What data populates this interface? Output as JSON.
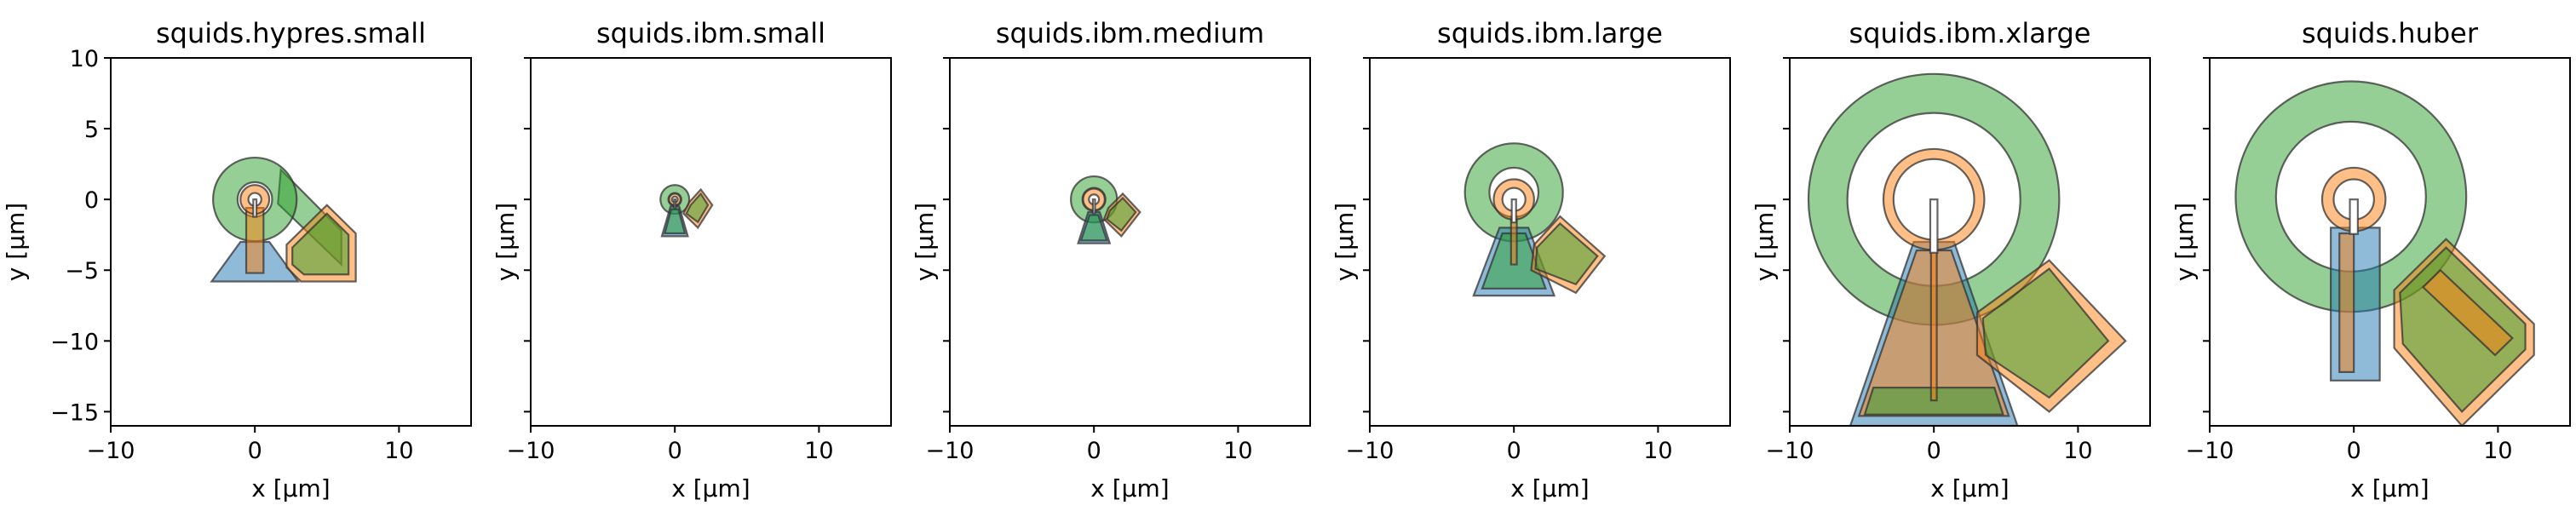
{
  "chart_data": [
    {
      "type": "layout",
      "title": "squids.hypres.small",
      "xlabel": "x [µm]",
      "ylabel": "y [µm]",
      "xlim": [
        -10,
        15
      ],
      "ylim": [
        -16,
        10
      ],
      "xticks": [
        -10,
        0,
        10
      ],
      "yticks": [
        10,
        5,
        0,
        -5,
        -10,
        -15
      ],
      "show_ytick_labels": true,
      "colors": {
        "blue": "#1f77b4",
        "orange": "#ff7f0e",
        "green": "#2ca02c"
      },
      "polygons": [
        {
          "name": "pl shield",
          "color": "blue",
          "points": [
            [
              -3,
              -5.8
            ],
            [
              -1,
              -3
            ],
            [
              1,
              -3
            ],
            [
              3,
              -5.8
            ]
          ]
        },
        {
          "name": "fc",
          "color": "orange",
          "points": [
            [
              2.2,
              -3.2
            ],
            [
              5,
              -0.4
            ],
            [
              7,
              -2.4
            ],
            [
              7,
              -5.8
            ],
            [
              3.2,
              -5.8
            ],
            [
              2.2,
              -4.8
            ]
          ]
        },
        {
          "name": "fc center",
          "color": "green",
          "points": [
            [
              2.6,
              -3.4
            ],
            [
              5,
              -1
            ],
            [
              6.5,
              -2.5
            ],
            [
              6.5,
              -5.3
            ],
            [
              3.4,
              -5.3
            ],
            [
              2.6,
              -4.6
            ]
          ]
        },
        {
          "name": "pl",
          "color": "orange",
          "points": [
            [
              -0.6,
              -5.2
            ],
            [
              -0.6,
              -0.6
            ],
            [
              0.6,
              -0.6
            ],
            [
              0.6,
              -5.2
            ]
          ]
        }
      ],
      "rings": [
        {
          "name": "washer",
          "color": "green",
          "cx": 0,
          "cy": 0,
          "r_outer": 2.9,
          "r_inner": 1.2,
          "arm": [
            [
              1.8,
              2.1
            ],
            [
              6,
              -2.2
            ],
            [
              6,
              -4.6
            ],
            [
              1.6,
              -0.3
            ]
          ]
        },
        {
          "name": "loop",
          "color": "orange",
          "cx": 0,
          "cy": 0,
          "r_outer": 1.0,
          "r_inner": 0.45,
          "slot": 0.22
        }
      ]
    },
    {
      "type": "layout",
      "title": "squids.ibm.small",
      "xlabel": "x [µm]",
      "ylabel": "y [µm]",
      "xlim": [
        -10,
        15
      ],
      "ylim": [
        -16,
        10
      ],
      "xticks": [
        -10,
        0,
        10
      ],
      "yticks": [
        10,
        5,
        0,
        -5,
        -10,
        -15
      ],
      "show_ytick_labels": false,
      "colors": {
        "blue": "#1f77b4",
        "orange": "#ff7f0e",
        "green": "#2ca02c"
      },
      "polygons": [
        {
          "name": "pl shield",
          "color": "blue",
          "points": [
            [
              -0.9,
              -2.6
            ],
            [
              -0.3,
              -0.5
            ],
            [
              0.3,
              -0.5
            ],
            [
              0.9,
              -2.6
            ]
          ]
        },
        {
          "name": "pl inner",
          "color": "green",
          "points": [
            [
              -0.7,
              -2.4
            ],
            [
              -0.25,
              -0.7
            ],
            [
              0.25,
              -0.7
            ],
            [
              0.7,
              -2.4
            ]
          ]
        },
        {
          "name": "fc",
          "color": "orange",
          "points": [
            [
              1.0,
              -0.2
            ],
            [
              1.8,
              0.7
            ],
            [
              2.6,
              -0.4
            ],
            [
              1.6,
              -2.0
            ],
            [
              0.6,
              -1.0
            ]
          ]
        },
        {
          "name": "fc center",
          "color": "green",
          "points": [
            [
              1.1,
              -0.4
            ],
            [
              1.8,
              0.4
            ],
            [
              2.3,
              -0.4
            ],
            [
              1.6,
              -1.6
            ],
            [
              0.8,
              -1.0
            ]
          ]
        }
      ],
      "rings": [
        {
          "name": "washer",
          "color": "green",
          "cx": 0,
          "cy": 0,
          "r_outer": 1.0,
          "r_inner": 0.45
        },
        {
          "name": "loop",
          "color": "orange",
          "cx": 0,
          "cy": 0,
          "r_outer": 0.4,
          "r_inner": 0.2,
          "slot": 0.1
        }
      ]
    },
    {
      "type": "layout",
      "title": "squids.ibm.medium",
      "xlabel": "x [µm]",
      "ylabel": "y [µm]",
      "xlim": [
        -10,
        15
      ],
      "ylim": [
        -16,
        10
      ],
      "xticks": [
        -10,
        0,
        10
      ],
      "yticks": [
        10,
        5,
        0,
        -5,
        -10,
        -15
      ],
      "show_ytick_labels": false,
      "colors": {
        "blue": "#1f77b4",
        "orange": "#ff7f0e",
        "green": "#2ca02c"
      },
      "polygons": [
        {
          "name": "pl shield",
          "color": "blue",
          "points": [
            [
              -1.1,
              -3.1
            ],
            [
              -0.4,
              -0.9
            ],
            [
              0.4,
              -0.9
            ],
            [
              1.1,
              -3.1
            ]
          ]
        },
        {
          "name": "pl inner",
          "color": "green",
          "points": [
            [
              -0.9,
              -2.9
            ],
            [
              -0.3,
              -1.1
            ],
            [
              0.3,
              -1.1
            ],
            [
              0.9,
              -2.9
            ]
          ]
        },
        {
          "name": "fc",
          "color": "orange",
          "points": [
            [
              1.0,
              -0.6
            ],
            [
              2.0,
              0.4
            ],
            [
              3.2,
              -0.9
            ],
            [
              1.9,
              -2.6
            ],
            [
              0.7,
              -1.4
            ]
          ]
        },
        {
          "name": "fc center",
          "color": "green",
          "points": [
            [
              1.1,
              -0.8
            ],
            [
              2.0,
              0.1
            ],
            [
              2.9,
              -0.9
            ],
            [
              1.9,
              -2.2
            ],
            [
              0.9,
              -1.4
            ]
          ]
        }
      ],
      "rings": [
        {
          "name": "washer",
          "color": "green",
          "cx": 0,
          "cy": 0,
          "r_outer": 1.6,
          "r_inner": 0.8
        },
        {
          "name": "loop",
          "color": "orange",
          "cx": 0,
          "cy": 0,
          "r_outer": 0.75,
          "r_inner": 0.35,
          "slot": 0.15
        }
      ]
    },
    {
      "type": "layout",
      "title": "squids.ibm.large",
      "xlabel": "x [µm]",
      "ylabel": "y [µm]",
      "xlim": [
        -10,
        15
      ],
      "ylim": [
        -16,
        10
      ],
      "xticks": [
        -10,
        0,
        10
      ],
      "yticks": [
        10,
        5,
        0,
        -5,
        -10,
        -15
      ],
      "show_ytick_labels": false,
      "colors": {
        "blue": "#1f77b4",
        "orange": "#ff7f0e",
        "green": "#2ca02c"
      },
      "polygons": [
        {
          "name": "pl shield",
          "color": "blue",
          "points": [
            [
              -2.8,
              -6.8
            ],
            [
              -1.0,
              -2.0
            ],
            [
              1.0,
              -2.0
            ],
            [
              2.8,
              -6.8
            ]
          ]
        },
        {
          "name": "pl inner",
          "color": "green",
          "points": [
            [
              -2.2,
              -6.3
            ],
            [
              -0.8,
              -2.4
            ],
            [
              0.8,
              -2.4
            ],
            [
              2.2,
              -6.3
            ]
          ]
        },
        {
          "name": "fc",
          "color": "orange",
          "points": [
            [
              1.4,
              -3.2
            ],
            [
              3.2,
              -1.2
            ],
            [
              6.3,
              -4.0
            ],
            [
              4.3,
              -6.6
            ],
            [
              1.2,
              -5.0
            ]
          ]
        },
        {
          "name": "fc center",
          "color": "green",
          "points": [
            [
              1.6,
              -3.4
            ],
            [
              3.2,
              -1.7
            ],
            [
              5.8,
              -4.0
            ],
            [
              4.3,
              -6.0
            ],
            [
              1.5,
              -4.9
            ]
          ]
        },
        {
          "name": "pl",
          "color": "orange",
          "points": [
            [
              -0.2,
              -4.6
            ],
            [
              -0.2,
              -1.2
            ],
            [
              0.2,
              -1.2
            ],
            [
              0.2,
              -4.6
            ]
          ]
        }
      ],
      "rings": [
        {
          "name": "washer",
          "color": "green",
          "cx": 0,
          "cy": 0.5,
          "r_outer": 3.4,
          "r_inner": 1.7
        },
        {
          "name": "loop",
          "color": "orange",
          "cx": 0,
          "cy": 0,
          "r_outer": 1.4,
          "r_inner": 0.8,
          "slot": 0.3
        }
      ]
    },
    {
      "type": "layout",
      "title": "squids.ibm.xlarge",
      "xlabel": "x [µm]",
      "ylabel": "y [µm]",
      "xlim": [
        -10,
        15
      ],
      "ylim": [
        -16,
        10
      ],
      "xticks": [
        -10,
        0,
        10
      ],
      "yticks": [
        10,
        5,
        0,
        -5,
        -10,
        -15
      ],
      "show_ytick_labels": false,
      "colors": {
        "blue": "#1f77b4",
        "orange": "#ff7f0e",
        "green": "#2ca02c"
      },
      "polygons": [
        {
          "name": "pl shield",
          "color": "blue",
          "points": [
            [
              -5.8,
              -16
            ],
            [
              -1.4,
              -3.0
            ],
            [
              1.4,
              -3.0
            ],
            [
              5.8,
              -16
            ]
          ]
        },
        {
          "name": "pl inner",
          "color": "orange",
          "points": [
            [
              -5.2,
              -15.3
            ],
            [
              -1.2,
              -3.6
            ],
            [
              1.2,
              -3.6
            ],
            [
              5.2,
              -15.3
            ]
          ]
        },
        {
          "name": "pl bottom",
          "color": "green",
          "points": [
            [
              -4.8,
              -15.2
            ],
            [
              -4.2,
              -13.3
            ],
            [
              4.2,
              -13.3
            ],
            [
              4.8,
              -15.2
            ]
          ]
        },
        {
          "name": "fc",
          "color": "orange",
          "points": [
            [
              3.0,
              -8.0
            ],
            [
              8.0,
              -4.3
            ],
            [
              13.3,
              -10.0
            ],
            [
              8.0,
              -15.0
            ],
            [
              3.0,
              -11.0
            ]
          ]
        },
        {
          "name": "fc center",
          "color": "green",
          "points": [
            [
              3.4,
              -8.4
            ],
            [
              8.0,
              -4.9
            ],
            [
              12.1,
              -10.0
            ],
            [
              8.0,
              -14.0
            ],
            [
              3.6,
              -11.0
            ]
          ]
        },
        {
          "name": "pl",
          "color": "orange",
          "points": [
            [
              -0.2,
              -14.2
            ],
            [
              -0.2,
              -3.0
            ],
            [
              0.2,
              -3.0
            ],
            [
              0.2,
              -14.2
            ]
          ]
        }
      ],
      "rings": [
        {
          "name": "washer",
          "color": "green",
          "cx": 0,
          "cy": 0,
          "r_outer": 8.7,
          "r_inner": 6.0,
          "gap": true
        },
        {
          "name": "loop",
          "color": "orange",
          "cx": 0,
          "cy": 0,
          "r_outer": 3.5,
          "r_inner": 2.8,
          "slot": 0.5
        }
      ]
    },
    {
      "type": "layout",
      "title": "squids.huber",
      "xlabel": "x [µm]",
      "ylabel": "y [µm]",
      "xlim": [
        -10,
        15
      ],
      "ylim": [
        -16,
        10
      ],
      "xticks": [
        -10,
        0,
        10
      ],
      "yticks": [
        10,
        5,
        0,
        -5,
        -10,
        -15
      ],
      "show_ytick_labels": false,
      "colors": {
        "blue": "#1f77b4",
        "orange": "#ff7f0e",
        "green": "#2ca02c"
      },
      "polygons": [
        {
          "name": "pl shield",
          "color": "blue",
          "points": [
            [
              -1.6,
              -12.8
            ],
            [
              -1.6,
              -2.0
            ],
            [
              1.8,
              -2.0
            ],
            [
              1.8,
              -12.8
            ]
          ]
        },
        {
          "name": "pl",
          "color": "orange",
          "points": [
            [
              -1.0,
              -12.2
            ],
            [
              -1.0,
              -2.4
            ],
            [
              0.0,
              -2.4
            ],
            [
              0.0,
              -12.2
            ]
          ]
        },
        {
          "name": "fc",
          "color": "orange",
          "points": [
            [
              2.8,
              -6.4
            ],
            [
              6.4,
              -2.8
            ],
            [
              12.5,
              -8.8
            ],
            [
              12.5,
              -11.0
            ],
            [
              7.5,
              -16.0
            ],
            [
              2.8,
              -10.5
            ]
          ]
        },
        {
          "name": "fc center",
          "color": "green",
          "points": [
            [
              3.2,
              -6.6
            ],
            [
              6.4,
              -3.4
            ],
            [
              11.9,
              -8.8
            ],
            [
              11.9,
              -10.6
            ],
            [
              7.5,
              -15.0
            ],
            [
              3.4,
              -10.2
            ]
          ]
        },
        {
          "name": "fc slot",
          "color": "orange",
          "points": [
            [
              6.0,
              -5.0
            ],
            [
              11.0,
              -9.8
            ],
            [
              9.8,
              -11.0
            ],
            [
              4.8,
              -6.2
            ]
          ]
        }
      ],
      "rings": [
        {
          "name": "washer",
          "color": "green",
          "cx": -0.2,
          "cy": 0.2,
          "r_outer": 8.0,
          "r_inner": 5.2
        },
        {
          "name": "loop",
          "color": "orange",
          "cx": 0,
          "cy": 0,
          "r_outer": 2.2,
          "r_inner": 1.4,
          "slot": 0.55
        }
      ]
    }
  ]
}
